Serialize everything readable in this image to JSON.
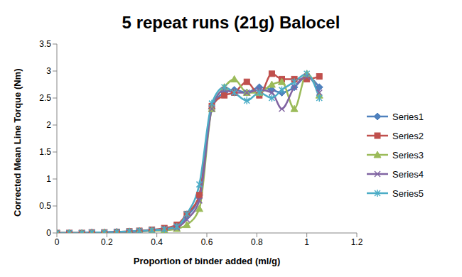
{
  "chart_data": {
    "type": "line",
    "title": "5 repeat runs (21g) Balocel",
    "x_label": "Proportion of binder added (ml/g)",
    "y_label": "Corrected Mean Line Torque (Nm)",
    "x": [
      0,
      0.05,
      0.1,
      0.14,
      0.19,
      0.24,
      0.29,
      0.33,
      0.38,
      0.43,
      0.48,
      0.52,
      0.57,
      0.62,
      0.67,
      0.71,
      0.76,
      0.81,
      0.86,
      0.9,
      0.95,
      1.0,
      1.05
    ],
    "series": [
      {
        "name": "Series1",
        "color": "#4f81bd",
        "marker": "diamond",
        "values": [
          0,
          0,
          0,
          0.01,
          0.01,
          0.02,
          0.02,
          0.03,
          0.05,
          0.07,
          0.12,
          0.3,
          0.7,
          2.3,
          2.6,
          2.65,
          2.6,
          2.7,
          2.65,
          2.6,
          2.7,
          2.9,
          2.7
        ]
      },
      {
        "name": "Series2",
        "color": "#c0504d",
        "marker": "square",
        "values": [
          0,
          0,
          0,
          0.01,
          0.01,
          0.02,
          0.03,
          0.04,
          0.06,
          0.09,
          0.15,
          0.35,
          0.7,
          2.35,
          2.55,
          2.6,
          2.8,
          2.55,
          2.95,
          2.85,
          2.85,
          2.85,
          2.9
        ]
      },
      {
        "name": "Series3",
        "color": "#9bbb59",
        "marker": "triangle",
        "values": [
          0,
          0,
          0,
          0,
          0.01,
          0.01,
          0.02,
          0.03,
          0.04,
          0.05,
          0.08,
          0.15,
          0.45,
          2.3,
          2.7,
          2.85,
          2.6,
          2.6,
          2.75,
          2.8,
          2.3,
          2.95,
          2.55
        ]
      },
      {
        "name": "Series4",
        "color": "#8064a2",
        "marker": "x",
        "values": [
          0,
          0,
          0,
          0.01,
          0.01,
          0.02,
          0.02,
          0.03,
          0.05,
          0.07,
          0.1,
          0.25,
          0.6,
          2.3,
          2.65,
          2.6,
          2.6,
          2.65,
          2.6,
          2.3,
          2.7,
          2.9,
          2.6
        ]
      },
      {
        "name": "Series5",
        "color": "#4bacc6",
        "marker": "star",
        "values": [
          0,
          0,
          0,
          0.01,
          0.01,
          0.02,
          0.03,
          0.04,
          0.05,
          0.07,
          0.12,
          0.35,
          0.9,
          2.4,
          2.7,
          2.6,
          2.45,
          2.6,
          2.5,
          2.65,
          2.8,
          2.95,
          2.5
        ]
      }
    ],
    "xlim": [
      0,
      1.2
    ],
    "xticks": [
      0,
      0.2,
      0.4,
      0.6,
      0.8,
      1,
      1.2
    ],
    "ylim": [
      0,
      3.5
    ],
    "yticks": [
      0,
      0.5,
      1,
      1.5,
      2,
      2.5,
      3,
      3.5
    ],
    "grid": false,
    "legend": "right"
  }
}
